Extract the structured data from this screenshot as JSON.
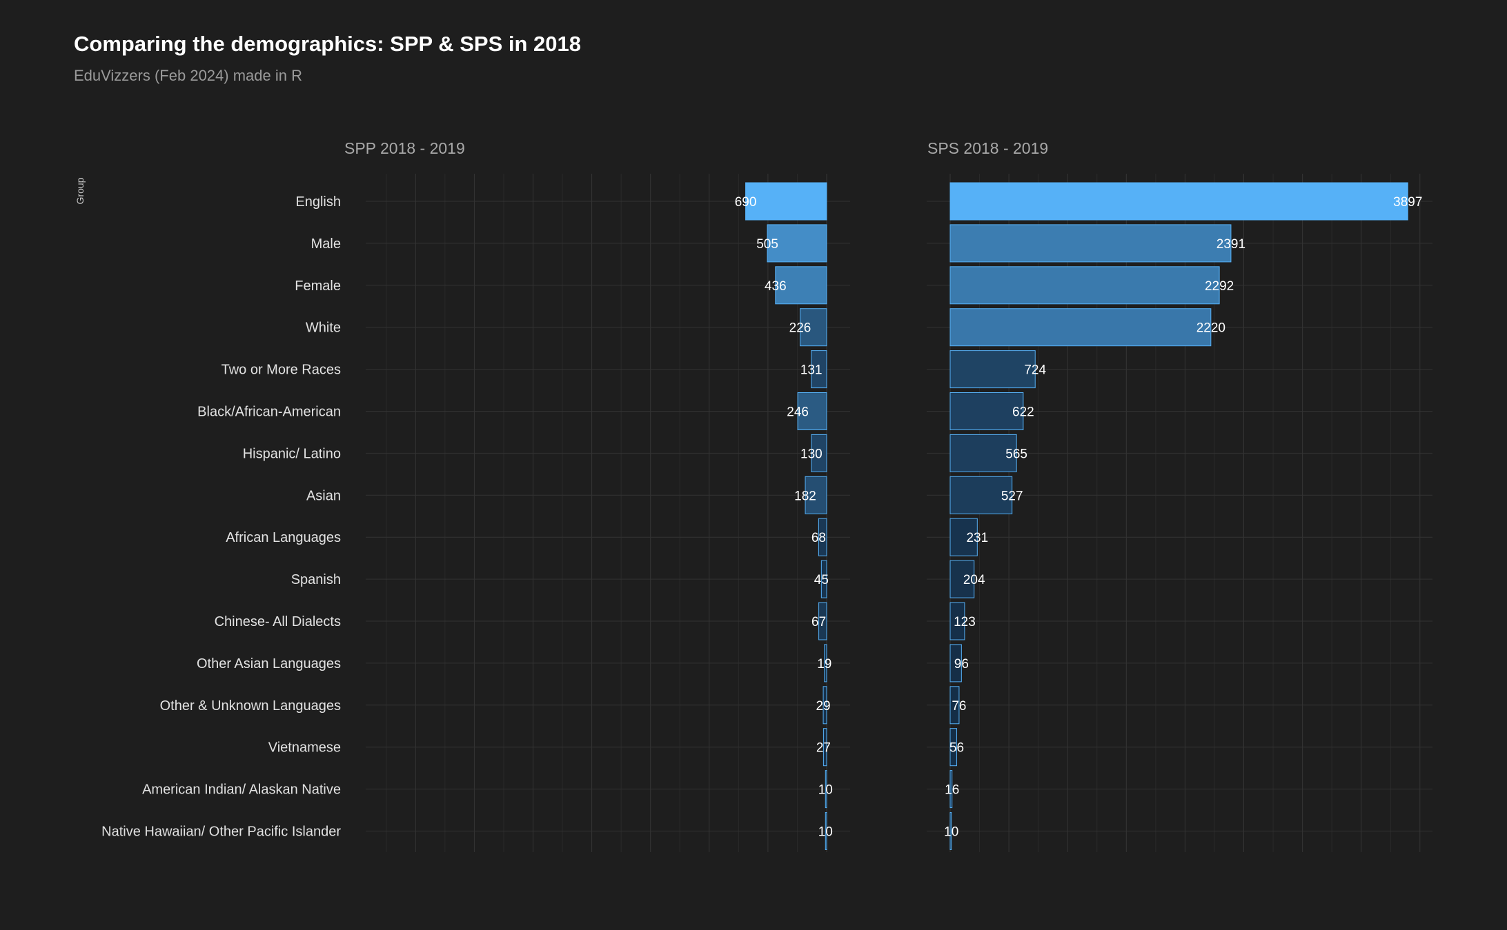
{
  "title": "Comparing the demographics: SPP & SPS in 2018",
  "subtitle": "EduVizzers (Feb 2024) made in R",
  "chart_data": {
    "type": "bar",
    "orientation": "horizontal",
    "ylabel": "Group",
    "grid": true,
    "legend": "none",
    "categories": [
      "English",
      "Male",
      "Female",
      "White",
      "Two or More Races",
      "Black/African-American",
      "Hispanic/ Latino",
      "Asian",
      "African Languages",
      "Spanish",
      "Chinese- All Dialects",
      "Other Asian Languages",
      "Other & Unknown Languages",
      "Vietnamese",
      "American Indian/ Alaskan Native",
      "Native Hawaiian/ Other Pacific Islander"
    ],
    "series": [
      {
        "facet": "SPP 2018 - 2019",
        "direction": "reversed",
        "xlim": [
          0,
          4000
        ],
        "values": [
          690,
          505,
          436,
          226,
          131,
          246,
          130,
          182,
          68,
          45,
          67,
          19,
          29,
          27,
          10,
          10
        ]
      },
      {
        "facet": "SPS 2018 - 2019",
        "direction": "normal",
        "xlim": [
          0,
          4000
        ],
        "values": [
          3897,
          2391,
          2292,
          2220,
          724,
          622,
          565,
          527,
          231,
          204,
          123,
          96,
          76,
          56,
          16,
          10
        ]
      }
    ],
    "colors": {
      "background": "#1e1e1e",
      "grid": "#333333",
      "bar_outline": "#56b1f7",
      "fill_low": "#132b43",
      "fill_high": "#56b1f7"
    }
  }
}
